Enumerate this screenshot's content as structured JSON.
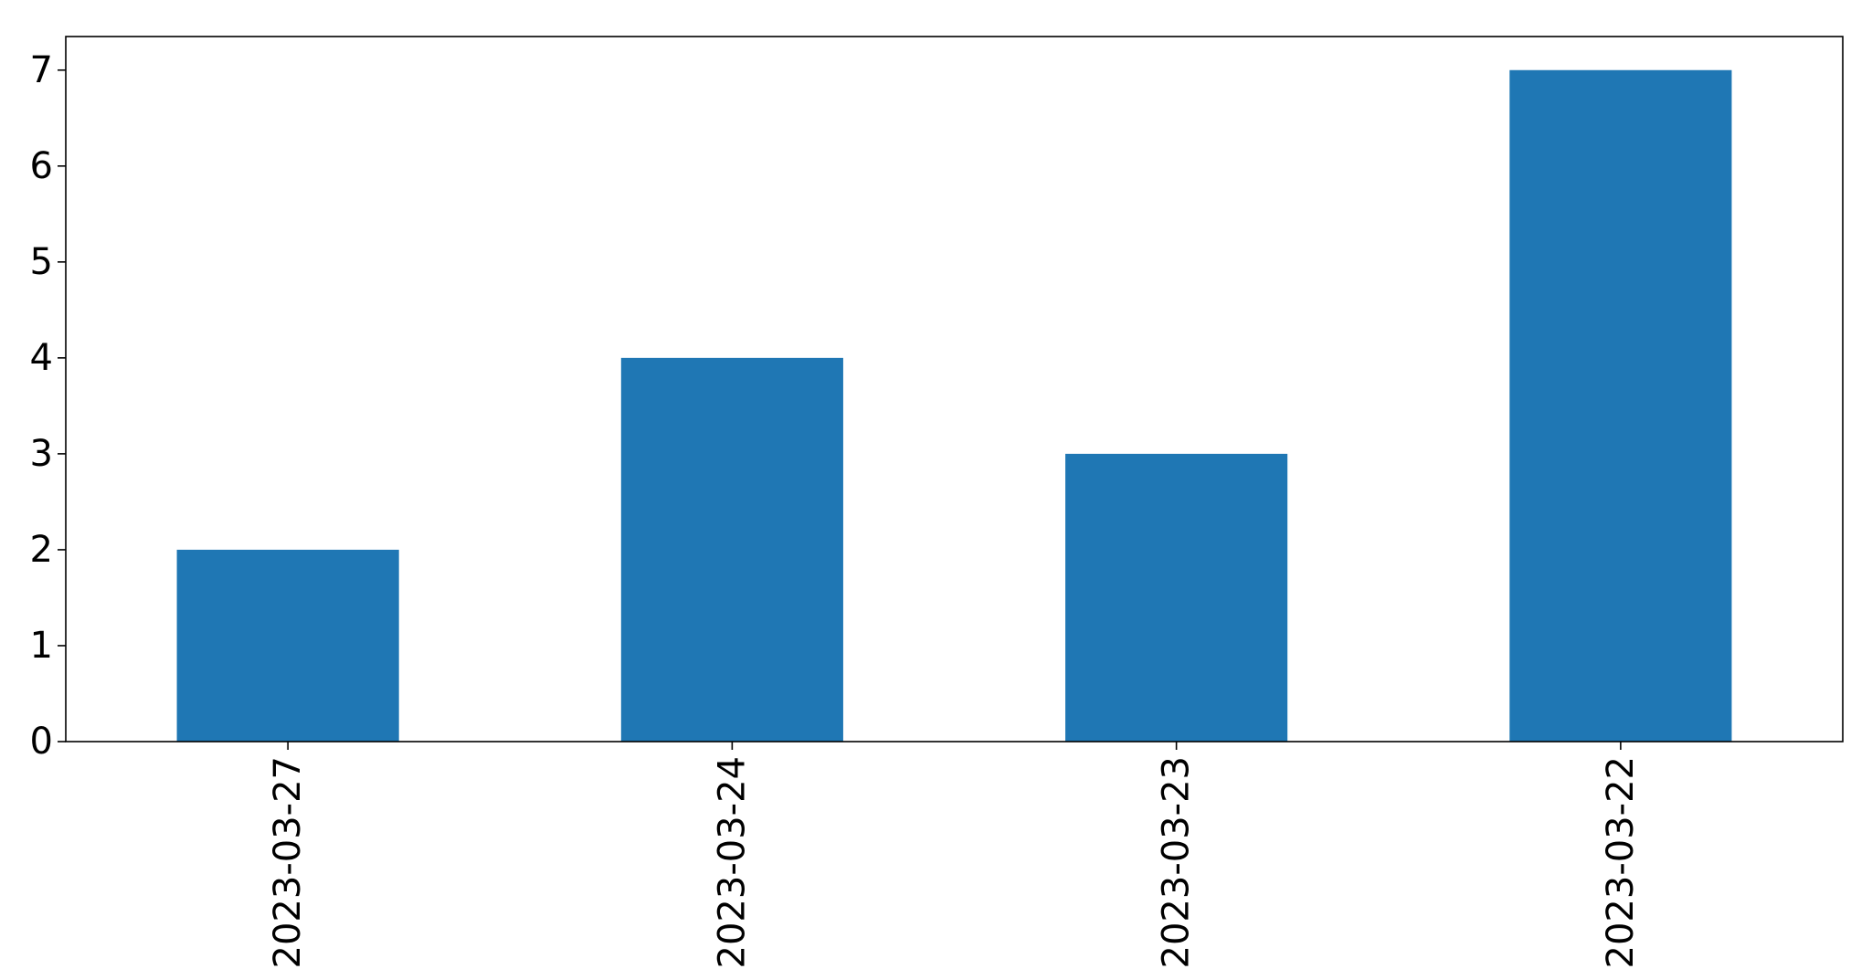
{
  "chart_data": {
    "type": "bar",
    "title": "",
    "xlabel": "",
    "ylabel": "",
    "categories": [
      "2023-03-27",
      "2023-03-24",
      "2023-03-23",
      "2023-03-22"
    ],
    "values": [
      2,
      4,
      3,
      7
    ],
    "ylim": [
      0,
      7.35
    ],
    "yticks": [
      0,
      1,
      2,
      3,
      4,
      5,
      6,
      7
    ],
    "grid": false,
    "legend": "none",
    "x_tick_rotation": "vertical",
    "bar_color": "#1f77b4"
  }
}
